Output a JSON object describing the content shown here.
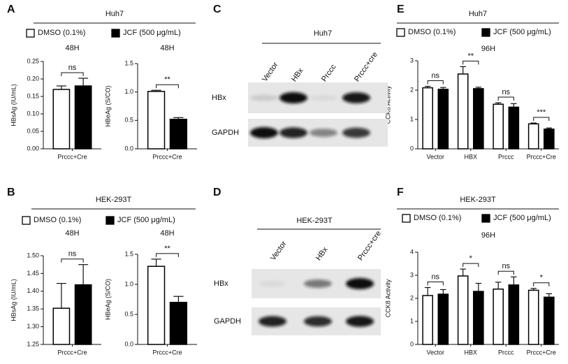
{
  "panels": [
    {
      "letter": "A",
      "title": "Huh7"
    },
    {
      "letter": "B",
      "title": "HEK-293T"
    },
    {
      "letter": "C"
    },
    {
      "letter": "D"
    },
    {
      "letter": "E",
      "title": "Huh7"
    },
    {
      "letter": "F",
      "title": "HEK-293T"
    }
  ],
  "blots": [
    {
      "title": "Huh7",
      "lanes": [
        "Vector",
        "HBx",
        "Prccc",
        "Prccc+cre"
      ],
      "rows": [
        "HBx",
        "GAPDH"
      ]
    },
    {
      "title": "HEK-293T",
      "lanes": [
        "Vector",
        "HBx",
        "Prccc+cre"
      ],
      "rows": [
        "HBx",
        "GAPDH"
      ]
    }
  ],
  "chart_data": [
    {
      "type": "bar",
      "title": "48H",
      "ylabel": "HBsAg (IU/mL)",
      "categories": [
        "Prccc+Cre"
      ],
      "series": [
        {
          "name": "DMSO (0.1%)",
          "color": "#ffffff",
          "values": [
            0.17
          ],
          "errors": [
            0.01
          ]
        },
        {
          "name": "JCF (500 μg/mL)",
          "color": "#000000",
          "values": [
            0.18
          ],
          "errors": [
            0.022
          ]
        }
      ],
      "ylim": [
        0,
        0.25
      ],
      "yticks": [
        {
          "value": 0,
          "label": "0.00"
        },
        {
          "value": 0.05,
          "label": "0.05"
        },
        {
          "value": 0.1,
          "label": "0.10"
        },
        {
          "value": 0.15,
          "label": "0.15"
        },
        {
          "value": 0.2,
          "label": "0.20"
        },
        {
          "value": 0.25,
          "label": "0.25"
        }
      ],
      "annotations": [
        "ns"
      ]
    },
    {
      "type": "bar",
      "title": "48H",
      "ylabel": "HBeAg (S/CO)",
      "categories": [
        "Prccc+Cre"
      ],
      "series": [
        {
          "color": "#ffffff",
          "values": [
            1.01
          ],
          "errors": [
            0.02
          ]
        },
        {
          "color": "#000000",
          "values": [
            0.52
          ],
          "errors": [
            0.03
          ]
        }
      ],
      "ylim": [
        0,
        1.5
      ],
      "yticks": [
        {
          "value": 0,
          "label": "0.0"
        },
        {
          "value": 0.5,
          "label": "0.5"
        },
        {
          "value": 1,
          "label": "1.0"
        },
        1.5
      ],
      "annotations": [
        "**"
      ]
    },
    {
      "type": "bar",
      "title": "48H",
      "ylabel": "HBsAg (IU/mL)",
      "categories": [
        "Prccc+Cre"
      ],
      "series": [
        {
          "name": "DMSO (0.1%)",
          "color": "#ffffff",
          "values": [
            1.352
          ],
          "errors": [
            0.07
          ]
        },
        {
          "name": "JCF (500 μg/mL)",
          "color": "#000000",
          "values": [
            1.418
          ],
          "errors": [
            0.057
          ]
        }
      ],
      "ylim": [
        1.25,
        1.5
      ],
      "yticks": [
        1.25,
        {
          "value": 1.3,
          "label": "1.30"
        },
        1.35,
        {
          "value": 1.4,
          "label": "1.40"
        },
        1.45,
        {
          "value": 1.5,
          "label": "1.50"
        }
      ],
      "annotations": [
        "ns"
      ]
    },
    {
      "type": "bar",
      "title": "48H",
      "ylabel": "HBeAg (S/CO)",
      "categories": [
        "Prccc+Cre"
      ],
      "series": [
        {
          "color": "#ffffff",
          "values": [
            1.3
          ],
          "errors": [
            0.12
          ]
        },
        {
          "color": "#000000",
          "values": [
            0.7
          ],
          "errors": [
            0.1
          ]
        }
      ],
      "ylim": [
        0,
        1.5
      ],
      "yticks": [
        {
          "value": 0,
          "label": "0.0"
        },
        {
          "value": 0.5,
          "label": "0.5"
        },
        {
          "value": 1,
          "label": "1.0"
        },
        1.5
      ],
      "annotations": [
        "**"
      ]
    },
    {
      "type": "bar",
      "title": "96H",
      "ylabel": "CCK8 Activity",
      "categories": [
        "Vector",
        "HBX",
        "Prccc",
        "Prccc+Cre"
      ],
      "series": [
        {
          "name": "DMSO (0.1%)",
          "color": "#ffffff",
          "values": [
            2.08,
            2.55,
            1.52,
            0.85
          ],
          "errors": [
            0.05,
            0.25,
            0.05,
            0.03
          ]
        },
        {
          "name": "JCF (500 μg/mL)",
          "color": "#000000",
          "values": [
            2.03,
            2.05,
            1.42,
            0.67
          ],
          "errors": [
            0.06,
            0.05,
            0.12,
            0.04
          ]
        }
      ],
      "ylim": [
        0,
        3
      ],
      "yticks": [
        0,
        1,
        2,
        3
      ],
      "annotations": [
        "ns",
        "**",
        "ns",
        "***"
      ]
    },
    {
      "type": "bar",
      "title": "96H",
      "ylabel": "CCK8 Activity",
      "categories": [
        "Vector",
        "HBX",
        "Prccc",
        "Prccc+Cre"
      ],
      "series": [
        {
          "name": "DMSO (0.1%)",
          "color": "#ffffff",
          "values": [
            2.12,
            2.97,
            2.4,
            2.35
          ],
          "errors": [
            0.35,
            0.3,
            0.3,
            0.08
          ]
        },
        {
          "name": "JCF (500 μg/mL)",
          "color": "#000000",
          "values": [
            2.18,
            2.3,
            2.58,
            2.05
          ],
          "errors": [
            0.2,
            0.35,
            0.35,
            0.15
          ]
        }
      ],
      "ylim": [
        0,
        4
      ],
      "yticks": [
        0,
        1,
        2,
        3,
        4
      ],
      "annotations": [
        "ns",
        "*",
        "ns",
        "*"
      ]
    }
  ]
}
